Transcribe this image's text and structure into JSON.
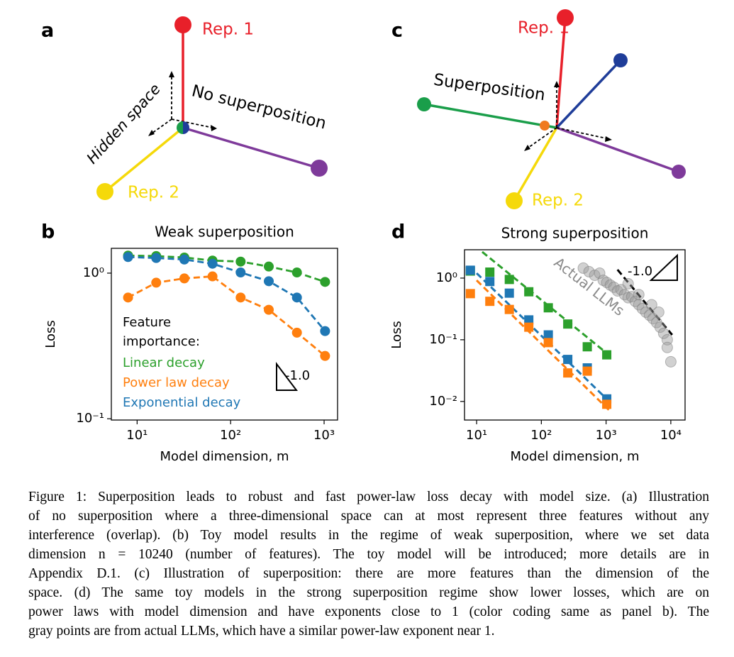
{
  "panels": {
    "a": {
      "letter": "a",
      "rep1": "Rep. 1",
      "rep2": "Rep. 2",
      "hidden": "Hidden space",
      "note": "No superposition"
    },
    "b": {
      "letter": "b"
    },
    "c": {
      "letter": "c",
      "rep1": "Rep. 1",
      "rep2": "Rep. 2",
      "note": "Superposition"
    },
    "d": {
      "letter": "d"
    }
  },
  "chart_data": [
    {
      "type": "line",
      "title": "Weak superposition",
      "xlabel": "Model dimension, m",
      "ylabel": "Loss",
      "log_x": true,
      "log_y": true,
      "xlim": [
        5.3,
        1393
      ],
      "ylim": [
        0.098,
        1.48
      ],
      "xticks": [
        {
          "value": 10,
          "label": "10¹"
        },
        {
          "value": 100,
          "label": "10²"
        },
        {
          "value": 1000,
          "label": "10³"
        }
      ],
      "yticks": [
        {
          "value": 0.1,
          "label": "10⁻¹"
        },
        {
          "value": 1,
          "label": "10⁰"
        }
      ],
      "x": [
        8,
        16,
        32,
        64,
        128,
        256,
        512,
        1024
      ],
      "legend_title": [
        "Feature",
        "importance:"
      ],
      "series": [
        {
          "name": "Linear decay",
          "color": "#2ca02c",
          "values": [
            1.32,
            1.31,
            1.28,
            1.22,
            1.2,
            1.11,
            1.01,
            0.87
          ]
        },
        {
          "name": "Power law decay",
          "color": "#ff7f0e",
          "values": [
            0.68,
            0.86,
            0.92,
            0.95,
            0.68,
            0.56,
            0.39,
            0.27
          ]
        },
        {
          "name": "Exponential decay",
          "color": "#1f77b4",
          "values": [
            1.29,
            1.27,
            1.24,
            1.16,
            1.01,
            0.88,
            0.68,
            0.4
          ]
        }
      ],
      "slope_label": "-1.0"
    },
    {
      "type": "scatter",
      "title": "Strong superposition",
      "xlabel": "Model dimension, m",
      "ylabel": "Loss",
      "log_x": true,
      "log_y": true,
      "xlim": [
        6.5,
        16600
      ],
      "ylim": [
        0.005,
        2.88
      ],
      "xticks": [
        {
          "value": 10,
          "label": "10¹"
        },
        {
          "value": 100,
          "label": "10²"
        },
        {
          "value": 1000,
          "label": "10³"
        },
        {
          "value": 10000,
          "label": "10⁴"
        }
      ],
      "yticks": [
        {
          "value": 0.01,
          "label": "10⁻²"
        },
        {
          "value": 0.1,
          "label": "10⁻¹"
        },
        {
          "value": 1,
          "label": "10⁰"
        }
      ],
      "x": [
        8,
        16,
        32,
        64,
        128,
        256,
        512,
        1024
      ],
      "series": [
        {
          "color": "#2ca02c",
          "values": [
            1.3,
            1.25,
            0.95,
            0.6,
            0.33,
            0.18,
            0.077,
            0.057
          ]
        },
        {
          "color": "#1f77b4",
          "values": [
            1.34,
            0.88,
            0.57,
            0.21,
            0.12,
            0.048,
            0.035,
            0.011
          ]
        },
        {
          "color": "#ff7f0e",
          "values": [
            0.56,
            0.42,
            0.31,
            0.16,
            0.09,
            0.029,
            0.031,
            0.009
          ]
        },
        {
          "name": "Actual LLMs",
          "color": "#9a9a9a",
          "marker": "circle",
          "x": [
            445,
            545,
            667,
            796,
            904,
            1025,
            1164,
            1321,
            1500,
            1702,
            1932,
            2193,
            2490,
            2825,
            3200,
            3630,
            4120,
            4680,
            5310,
            6030,
            6840,
            7760,
            8810,
            8810,
            10000,
            5050,
            6500,
            3200,
            2193
          ],
          "values": [
            1.45,
            1.27,
            1.11,
            1.2,
            0.92,
            0.85,
            0.77,
            0.71,
            0.62,
            0.65,
            0.54,
            0.48,
            0.5,
            0.42,
            0.37,
            0.32,
            0.28,
            0.25,
            0.22,
            0.19,
            0.16,
            0.127,
            0.1,
            0.075,
            0.044,
            0.37,
            0.28,
            0.54,
            0.81
          ]
        }
      ],
      "fits": [
        {
          "color": "#2ca02c",
          "x": [
            12.2,
            1100
          ],
          "values": [
            2.66,
            0.057
          ]
        },
        {
          "color": "#1f77b4",
          "x": [
            10,
            1100
          ],
          "values": [
            1.2,
            0.0102
          ]
        },
        {
          "color": "#ff7f0e",
          "x": [
            10,
            1100
          ],
          "values": [
            0.92,
            0.0073
          ]
        },
        {
          "color": "#000000",
          "x": [
            1500,
            10500
          ],
          "values": [
            1.37,
            0.12
          ]
        }
      ],
      "slope_label": "-1.0"
    }
  ],
  "caption": [
    "Figure 1: Superposition leads to robust and fast power-law loss decay with model size. (a) Illustration",
    "of no superposition where a three-dimensional space can at most represent three features without any",
    "interference (overlap). (b) Toy model results in the regime of weak superposition, where we set data",
    "dimension n = 10240 (number of features). The toy model will be introduced; more details are in",
    "Appendix D.1. (c) Illustration of superposition: there are more features than the dimension of the",
    "space. (d) The same toy models in the strong superposition regime show lower losses, which are on",
    "power laws with model dimension and have exponents close to 1 (color coding same as panel b). The",
    "gray points are from actual LLMs, which have a similar power-law exponent near 1."
  ]
}
